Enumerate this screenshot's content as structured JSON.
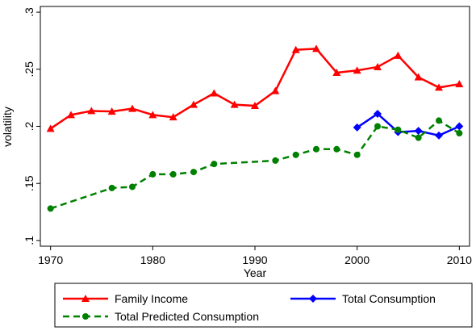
{
  "chart_data": {
    "type": "line",
    "xlabel": "Year",
    "ylabel": "volatility",
    "xlim": [
      1969,
      2011
    ],
    "xticks": [
      1970,
      1980,
      1990,
      2000,
      2010
    ],
    "ylim": [
      0.095,
      0.305
    ],
    "yticks": [
      {
        "value": 0.1,
        "label": ".1"
      },
      {
        "value": 0.15,
        "label": ".15"
      },
      {
        "value": 0.2,
        "label": ".2"
      },
      {
        "value": 0.25,
        "label": ".25"
      },
      {
        "value": 0.3,
        "label": ".3"
      }
    ],
    "grid": false,
    "series": [
      {
        "name": "Family Income",
        "color": "#ff0000",
        "marker": "triangle",
        "dash": false,
        "x": [
          1970,
          1972,
          1974,
          1976,
          1978,
          1980,
          1982,
          1984,
          1986,
          1988,
          1990,
          1992,
          1994,
          1996,
          1998,
          2000,
          2002,
          2004,
          2006,
          2008,
          2010
        ],
        "values": [
          0.198,
          0.21,
          0.2135,
          0.213,
          0.2155,
          0.21,
          0.208,
          0.219,
          0.229,
          0.219,
          0.218,
          0.231,
          0.267,
          0.268,
          0.247,
          0.249,
          0.252,
          0.262,
          0.243,
          0.234,
          0.237
        ]
      },
      {
        "name": "Total Consumption",
        "color": "#0000ff",
        "marker": "diamond",
        "dash": false,
        "x": [
          2000,
          2002,
          2004,
          2006,
          2008,
          2010
        ],
        "values": [
          0.199,
          0.211,
          0.195,
          0.196,
          0.192,
          0.2
        ]
      },
      {
        "name": "Total Predicted Consumption",
        "color": "#008000",
        "marker": "circle",
        "dash": true,
        "x": [
          1970,
          1976,
          1978,
          1980,
          1982,
          1984,
          1986,
          1992,
          1994,
          1996,
          1998,
          2000,
          2002,
          2004,
          2006,
          2008,
          2010
        ],
        "values": [
          0.128,
          0.146,
          0.147,
          0.158,
          0.158,
          0.16,
          0.167,
          0.17,
          0.175,
          0.18,
          0.18,
          0.175,
          0.2,
          0.197,
          0.19,
          0.205,
          0.194
        ]
      }
    ]
  }
}
